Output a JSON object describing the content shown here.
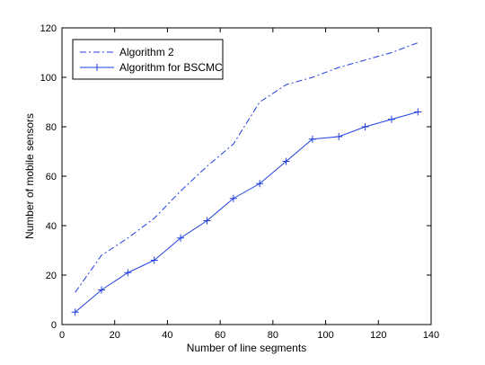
{
  "chart_data": {
    "type": "line",
    "title": "",
    "xlabel": "Number of line segments",
    "ylabel": "Number of mobile sensors",
    "xlim": [
      0,
      140
    ],
    "ylim": [
      0,
      120
    ],
    "xticks": [
      0,
      20,
      40,
      60,
      80,
      100,
      120,
      140
    ],
    "yticks": [
      0,
      20,
      40,
      60,
      80,
      100,
      120
    ],
    "grid": false,
    "legend_position": "top-left",
    "series": [
      {
        "name": "Algorithm 2",
        "style": "dash-dot",
        "marker": "none",
        "color": "#1f3fe0",
        "x": [
          5,
          15,
          25,
          35,
          45,
          55,
          65,
          75,
          85,
          95,
          105,
          115,
          125,
          135
        ],
        "y": [
          13,
          28,
          35,
          43,
          54,
          64,
          73,
          90,
          97,
          100,
          104,
          107,
          110,
          114
        ]
      },
      {
        "name": "Algorithm for BSCMC",
        "style": "solid",
        "marker": "plus",
        "color": "#1f3fe0",
        "x": [
          5,
          15,
          25,
          35,
          45,
          55,
          65,
          75,
          85,
          95,
          105,
          115,
          125,
          135
        ],
        "y": [
          5,
          14,
          21,
          26,
          35,
          42,
          51,
          57,
          66,
          75,
          76,
          80,
          83,
          86
        ]
      }
    ]
  }
}
